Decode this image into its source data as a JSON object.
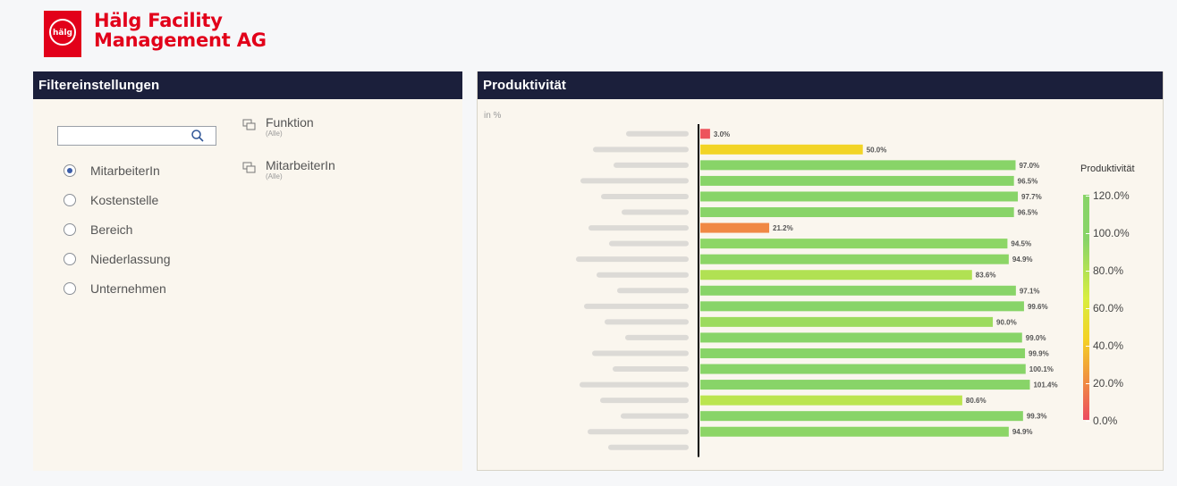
{
  "logo": {
    "line1": "Hälg Facility",
    "line2": "Management AG",
    "mark_text": "hälg"
  },
  "filter_panel": {
    "title": "Filtereinstellungen",
    "search": {
      "value": "",
      "placeholder": ""
    },
    "radio_options": [
      {
        "label": "MitarbeiterIn",
        "checked": true
      },
      {
        "label": "Kostenstelle",
        "checked": false
      },
      {
        "label": "Bereich",
        "checked": false
      },
      {
        "label": "Niederlassung",
        "checked": false
      },
      {
        "label": "Unternehmen",
        "checked": false
      }
    ],
    "filters": [
      {
        "title": "Funktion",
        "value": "(Alle)"
      },
      {
        "title": "MitarbeiterIn",
        "value": "(Alle)"
      }
    ]
  },
  "chart_panel": {
    "title": "Produktivität",
    "unit_label": "in %",
    "legend": {
      "title": "Produktivität",
      "ticks": [
        "120.0%",
        "100.0%",
        "80.0%",
        "60.0%",
        "40.0%",
        "20.0%",
        "0.0%"
      ]
    }
  },
  "chart_data": {
    "type": "bar",
    "orientation": "horizontal",
    "categories": [
      "",
      "",
      "",
      "",
      "",
      "",
      "",
      "",
      "",
      "",
      "",
      "",
      "",
      "",
      "",
      "",
      "",
      "",
      "",
      "",
      ""
    ],
    "values": [
      3.0,
      50.0,
      97.0,
      96.5,
      97.7,
      96.5,
      21.2,
      94.5,
      94.9,
      83.6,
      97.1,
      99.6,
      90.0,
      99.0,
      99.9,
      100.1,
      101.4,
      80.6,
      99.3,
      94.9,
      null
    ],
    "data_labels": [
      "3.0%",
      "50.0%",
      "97.0%",
      "96.5%",
      "97.7%",
      "96.5%",
      "21.2%",
      "94.5%",
      "94.9%",
      "83.6%",
      "97.1%",
      "99.6%",
      "90.0%",
      "99.0%",
      "99.9%",
      "100.1%",
      "101.4%",
      "80.6%",
      "99.3%",
      "94.9%",
      ""
    ],
    "category_names_blurred": true,
    "color_scale": {
      "min": 0,
      "max": 120,
      "stops": [
        "#ec4a60",
        "#f09040",
        "#f4d224",
        "#d8ee40",
        "#88d468",
        "#88d468"
      ]
    },
    "legend_placement": "right",
    "grid": false
  },
  "colors": {
    "brand": "#e2001a",
    "header_bg": "#1b1f3b",
    "panel_bg": "#faf6ee",
    "radio_accent": "#3a5ca8"
  }
}
